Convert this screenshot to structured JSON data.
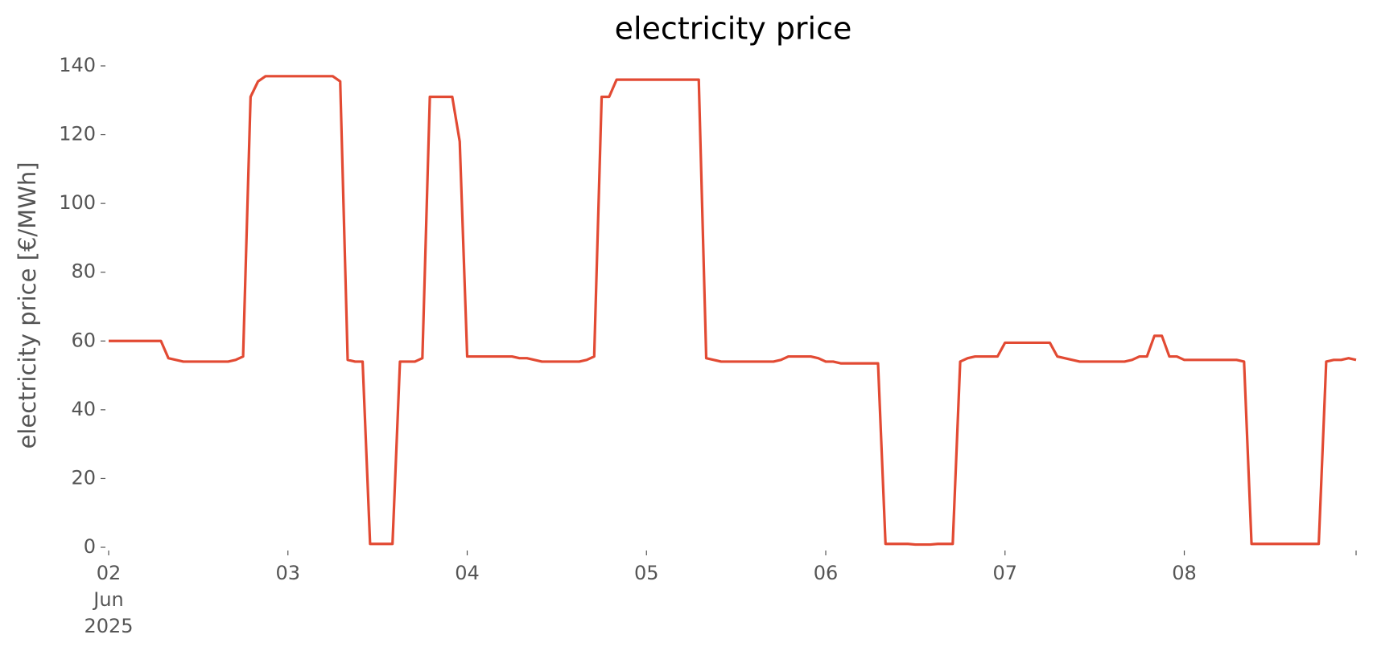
{
  "chart_data": {
    "type": "line",
    "title": "electricity price",
    "y_label": "electricity price [€/MWh]",
    "x": [
      0,
      1,
      2,
      3,
      4,
      5,
      6,
      7,
      8,
      9,
      10,
      11,
      12,
      13,
      14,
      15,
      16,
      17,
      18,
      19,
      20,
      21,
      22,
      23,
      24,
      25,
      26,
      27,
      28,
      29,
      30,
      31,
      32,
      33,
      34,
      35,
      36,
      37,
      38,
      39,
      40,
      41,
      42,
      43,
      44,
      45,
      46,
      47,
      48,
      49,
      50,
      51,
      52,
      53,
      54,
      55,
      56,
      57,
      58,
      59,
      60,
      61,
      62,
      63,
      64,
      65,
      66,
      67,
      68,
      69,
      70,
      71,
      72,
      73,
      74,
      75,
      76,
      77,
      78,
      79,
      80,
      81,
      82,
      83,
      84,
      85,
      86,
      87,
      88,
      89,
      90,
      91,
      92,
      93,
      94,
      95,
      96,
      97,
      98,
      99,
      100,
      101,
      102,
      103,
      104,
      105,
      106,
      107,
      108,
      109,
      110,
      111,
      112,
      113,
      114,
      115,
      116,
      117,
      118,
      119,
      120,
      121,
      122,
      123,
      124,
      125,
      126,
      127,
      128,
      129,
      130,
      131,
      132,
      133,
      134,
      135,
      136,
      137,
      138,
      139,
      140,
      141,
      142,
      143,
      144,
      145,
      146,
      147,
      148,
      149,
      150,
      151,
      152,
      153,
      154,
      155,
      156,
      157,
      158,
      159,
      160,
      161,
      162,
      163,
      164,
      165,
      166,
      167
    ],
    "series": [
      {
        "name": "electricity price",
        "color": "#e24a33",
        "values": [
          60,
          60,
          60,
          60,
          60,
          60,
          60,
          60,
          55,
          54.5,
          54,
          54,
          54,
          54,
          54,
          54,
          54,
          54.5,
          55.5,
          131,
          135.5,
          137,
          137,
          137,
          137,
          137,
          137,
          137,
          137,
          137,
          137,
          135.5,
          54.5,
          54,
          54,
          1,
          1,
          1,
          1,
          54,
          54,
          54,
          55,
          131,
          131,
          131,
          131,
          118,
          55.5,
          55.5,
          55.5,
          55.5,
          55.5,
          55.5,
          55.5,
          55,
          55,
          54.5,
          54,
          54,
          54,
          54,
          54,
          54,
          54.5,
          55.5,
          131,
          131,
          136,
          136,
          136,
          136,
          136,
          136,
          136,
          136,
          136,
          136,
          136,
          136,
          55,
          54.5,
          54,
          54,
          54,
          54,
          54,
          54,
          54,
          54,
          54.5,
          55.5,
          55.5,
          55.5,
          55.5,
          55,
          54,
          54,
          53.5,
          53.5,
          53.5,
          53.5,
          53.5,
          53.5,
          1,
          1,
          1,
          1,
          0.8,
          0.8,
          0.8,
          1,
          1,
          1,
          54,
          55,
          55.5,
          55.5,
          55.5,
          55.5,
          59.5,
          59.5,
          59.5,
          59.5,
          59.5,
          59.5,
          59.5,
          55.5,
          55,
          54.5,
          54,
          54,
          54,
          54,
          54,
          54,
          54,
          54.5,
          55.5,
          55.5,
          61.5,
          61.5,
          55.5,
          55.5,
          54.5,
          54.5,
          54.5,
          54.5,
          54.5,
          54.5,
          54.5,
          54.5,
          54,
          1,
          1,
          1,
          1,
          1,
          1,
          1,
          1,
          1,
          1,
          54,
          54.5,
          54.5,
          55,
          54.5
        ]
      }
    ],
    "xlim": [
      0,
      167
    ],
    "xticks": [
      {
        "value": 0,
        "label": "02\nJun\n2025"
      },
      {
        "value": 24,
        "label": "03"
      },
      {
        "value": 48,
        "label": "04"
      },
      {
        "value": 72,
        "label": "05"
      },
      {
        "value": 96,
        "label": "06"
      },
      {
        "value": 120,
        "label": "07"
      },
      {
        "value": 144,
        "label": "08"
      }
    ],
    "ylim": [
      0,
      140
    ],
    "yticks": [
      0,
      20,
      40,
      60,
      80,
      100,
      120,
      140
    ],
    "grid": false
  }
}
